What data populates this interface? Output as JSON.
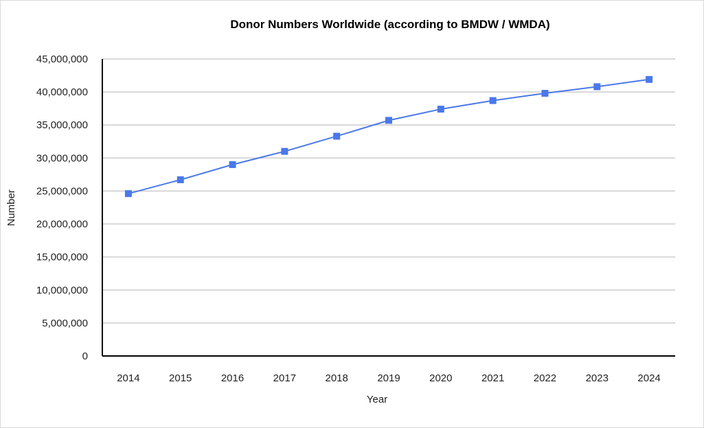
{
  "chart_data": {
    "type": "line",
    "title": "Donor Numbers Worldwide (according to BMDW / WMDA)",
    "xlabel": "Year",
    "ylabel": "Number",
    "categories": [
      "2014",
      "2015",
      "2016",
      "2017",
      "2018",
      "2019",
      "2020",
      "2021",
      "2022",
      "2023",
      "2024"
    ],
    "series": [
      {
        "values": [
          24600000,
          26700000,
          29000000,
          31000000,
          33300000,
          35700000,
          37400000,
          38700000,
          39800000,
          40800000,
          41900000
        ]
      }
    ],
    "ylim": [
      0,
      45000000
    ],
    "yticks": [
      0,
      5000000,
      10000000,
      15000000,
      20000000,
      25000000,
      30000000,
      35000000,
      40000000,
      45000000
    ],
    "ytick_labels": [
      "0",
      "5,000,000",
      "10,000,000",
      "15,000,000",
      "20,000,000",
      "25,000,000",
      "30,000,000",
      "35,000,000",
      "40,000,000",
      "45,000,000"
    ],
    "grid": true,
    "legend": "none",
    "colors": {
      "series": "#4a78e8",
      "grid": "#cccccc",
      "axis": "#000000"
    }
  }
}
